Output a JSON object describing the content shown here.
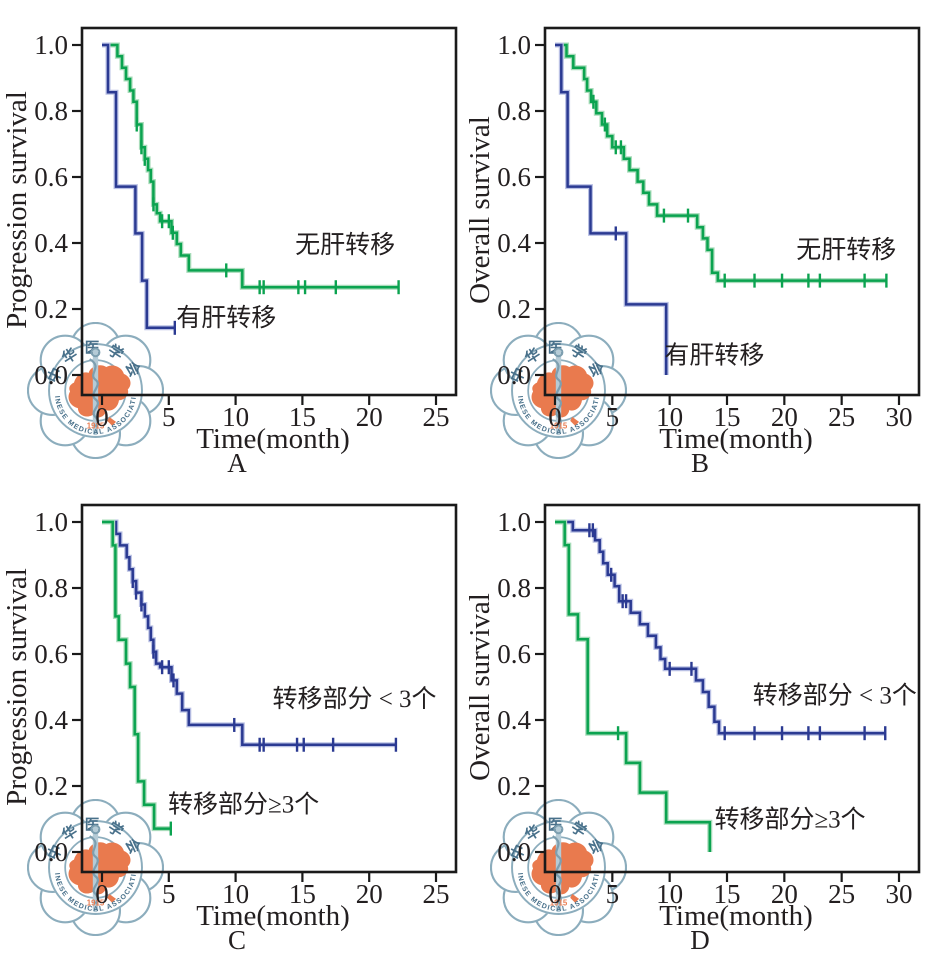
{
  "colors": {
    "green": "#0ba350",
    "green_halo": "#a8dcba",
    "navy": "#2b3a92",
    "navy_halo": "#b9c0e4",
    "axis": "#1a1a1a",
    "text": "#231f20",
    "watermark_blue": "#8cadbd",
    "watermark_text_blue": "#48708a",
    "watermark_orange": "#e97a4e"
  },
  "watermark": {
    "name": "chinese-medical-association-logo",
    "top_text": "中华医学会",
    "bottom_text": "CHINESE MEDICAL ASSOCIATION",
    "year": "1915"
  },
  "chart_data": [
    {
      "type": "line",
      "subtype": "kaplan-meier-step",
      "panel_label": "A",
      "xlabel": "Time(month)",
      "ylabel": "Progression survival",
      "xlim": [
        0,
        25
      ],
      "ylim": [
        0,
        1.0
      ],
      "xticks": [
        0,
        5,
        10,
        15,
        20,
        25
      ],
      "yticks": [
        "0.0",
        "0.2",
        "0.4",
        "0.6",
        "0.8",
        "1.0"
      ],
      "grid": false,
      "legend_position": "inline-labels",
      "series": [
        {
          "name": "无肝转移",
          "color_key": "green",
          "steps": [
            [
              0,
              1.0
            ],
            [
              1.15,
              0.966
            ],
            [
              1.5,
              0.931
            ],
            [
              1.8,
              0.897
            ],
            [
              2.1,
              0.862
            ],
            [
              2.35,
              0.828
            ],
            [
              2.6,
              0.759
            ],
            [
              2.95,
              0.69
            ],
            [
              3.2,
              0.655
            ],
            [
              3.45,
              0.621
            ],
            [
              3.65,
              0.586
            ],
            [
              3.85,
              0.517
            ],
            [
              4.1,
              0.49
            ],
            [
              4.35,
              0.466
            ],
            [
              5.2,
              0.431
            ],
            [
              5.6,
              0.397
            ],
            [
              5.9,
              0.362
            ],
            [
              6.5,
              0.317
            ],
            [
              10.5,
              0.266
            ],
            [
              22.2,
              0.266
            ]
          ],
          "censors": [
            [
              2.6,
              0.759
            ],
            [
              2.95,
              0.69
            ],
            [
              3.2,
              0.655
            ],
            [
              3.85,
              0.517
            ],
            [
              4.5,
              0.466
            ],
            [
              5.0,
              0.466
            ],
            [
              5.3,
              0.431
            ],
            [
              9.3,
              0.317
            ],
            [
              11.8,
              0.266
            ],
            [
              12.1,
              0.266
            ],
            [
              14.7,
              0.266
            ],
            [
              15.2,
              0.266
            ],
            [
              17.5,
              0.266
            ],
            [
              22.2,
              0.266
            ]
          ],
          "label_pos": [
            18.2,
            0.37
          ]
        },
        {
          "name": "有肝转移",
          "color_key": "navy",
          "steps": [
            [
              0,
              1.0
            ],
            [
              0.45,
              0.857
            ],
            [
              1.05,
              0.571
            ],
            [
              2.5,
              0.429
            ],
            [
              3.0,
              0.286
            ],
            [
              3.35,
              0.143
            ],
            [
              5.5,
              0.143
            ]
          ],
          "censors": [
            [
              5.45,
              0.143
            ]
          ],
          "label_pos": [
            9.3,
            0.148
          ]
        }
      ]
    },
    {
      "type": "line",
      "subtype": "kaplan-meier-step",
      "panel_label": "B",
      "xlabel": "Time(month)",
      "ylabel": "Overall survival",
      "xlim": [
        0,
        30
      ],
      "ylim": [
        0,
        1.0
      ],
      "xticks": [
        0,
        5,
        10,
        15,
        20,
        25,
        30
      ],
      "yticks": [
        "0.0",
        "0.2",
        "0.4",
        "0.6",
        "0.8",
        "1.0"
      ],
      "grid": false,
      "legend_position": "inline-labels",
      "series": [
        {
          "name": "无肝转移",
          "color_key": "green",
          "steps": [
            [
              0,
              1.0
            ],
            [
              1.0,
              0.966
            ],
            [
              1.6,
              0.931
            ],
            [
              2.55,
              0.897
            ],
            [
              2.8,
              0.862
            ],
            [
              3.15,
              0.828
            ],
            [
              3.6,
              0.793
            ],
            [
              4.1,
              0.759
            ],
            [
              4.55,
              0.724
            ],
            [
              5.0,
              0.69
            ],
            [
              6.0,
              0.655
            ],
            [
              6.5,
              0.621
            ],
            [
              7.2,
              0.586
            ],
            [
              7.7,
              0.552
            ],
            [
              8.2,
              0.517
            ],
            [
              8.9,
              0.483
            ],
            [
              12.4,
              0.448
            ],
            [
              12.9,
              0.414
            ],
            [
              13.3,
              0.379
            ],
            [
              13.7,
              0.31
            ],
            [
              14.2,
              0.286
            ],
            [
              28.9,
              0.286
            ]
          ],
          "censors": [
            [
              3.35,
              0.828
            ],
            [
              4.35,
              0.759
            ],
            [
              5.3,
              0.69
            ],
            [
              5.75,
              0.69
            ],
            [
              9.5,
              0.483
            ],
            [
              11.6,
              0.483
            ],
            [
              14.8,
              0.286
            ],
            [
              17.4,
              0.286
            ],
            [
              19.8,
              0.286
            ],
            [
              22.1,
              0.286
            ],
            [
              23.1,
              0.286
            ],
            [
              27.0,
              0.286
            ],
            [
              28.9,
              0.286
            ]
          ],
          "label_pos": [
            25.4,
            0.355
          ]
        },
        {
          "name": "有肝转移",
          "color_key": "navy",
          "steps": [
            [
              0,
              1.0
            ],
            [
              0.55,
              0.857
            ],
            [
              1.1,
              0.571
            ],
            [
              3.1,
              0.429
            ],
            [
              6.2,
              0.214
            ],
            [
              9.7,
              0.0
            ]
          ],
          "censors": [
            [
              5.3,
              0.429
            ]
          ],
          "label_pos": [
            13.9,
            0.035
          ]
        }
      ]
    },
    {
      "type": "line",
      "subtype": "kaplan-meier-step",
      "panel_label": "C",
      "xlabel": "Time(month)",
      "ylabel": "Progression survival",
      "xlim": [
        0,
        25
      ],
      "ylim": [
        0,
        1.0
      ],
      "xticks": [
        0,
        5,
        10,
        15,
        20,
        25
      ],
      "yticks": [
        "0.0",
        "0.2",
        "0.4",
        "0.6",
        "0.8",
        "1.0"
      ],
      "grid": false,
      "legend_position": "inline-labels",
      "series": [
        {
          "name": "转移部分 < 3个",
          "color_key": "navy",
          "steps": [
            [
              0,
              1.0
            ],
            [
              1.05,
              0.964
            ],
            [
              1.35,
              0.929
            ],
            [
              1.85,
              0.893
            ],
            [
              2.05,
              0.857
            ],
            [
              2.3,
              0.821
            ],
            [
              2.55,
              0.786
            ],
            [
              2.95,
              0.75
            ],
            [
              3.2,
              0.714
            ],
            [
              3.45,
              0.679
            ],
            [
              3.65,
              0.643
            ],
            [
              3.85,
              0.607
            ],
            [
              4.05,
              0.571
            ],
            [
              4.35,
              0.56
            ],
            [
              5.2,
              0.52
            ],
            [
              5.6,
              0.48
            ],
            [
              6.0,
              0.43
            ],
            [
              6.5,
              0.385
            ],
            [
              10.5,
              0.325
            ],
            [
              22.0,
              0.325
            ]
          ],
          "censors": [
            [
              2.3,
              0.821
            ],
            [
              2.55,
              0.786
            ],
            [
              2.95,
              0.75
            ],
            [
              3.85,
              0.607
            ],
            [
              4.5,
              0.56
            ],
            [
              5.0,
              0.56
            ],
            [
              5.35,
              0.52
            ],
            [
              9.9,
              0.385
            ],
            [
              11.8,
              0.325
            ],
            [
              12.1,
              0.325
            ],
            [
              14.6,
              0.325
            ],
            [
              15.1,
              0.325
            ],
            [
              17.3,
              0.325
            ],
            [
              22.0,
              0.325
            ]
          ],
          "label_pos": [
            18.9,
            0.44
          ]
        },
        {
          "name": "转移部分≥3个",
          "color_key": "green",
          "steps": [
            [
              0,
              1.0
            ],
            [
              0.8,
              0.929
            ],
            [
              1.0,
              0.714
            ],
            [
              1.25,
              0.643
            ],
            [
              1.8,
              0.571
            ],
            [
              2.1,
              0.5
            ],
            [
              2.45,
              0.357
            ],
            [
              2.7,
              0.214
            ],
            [
              3.15,
              0.143
            ],
            [
              3.9,
              0.071
            ],
            [
              5.2,
              0.071
            ]
          ],
          "censors": [
            [
              5.15,
              0.071
            ]
          ],
          "label_pos": [
            10.6,
            0.12
          ]
        }
      ]
    },
    {
      "type": "line",
      "subtype": "kaplan-meier-step",
      "panel_label": "D",
      "xlabel": "Time(month)",
      "ylabel": "Overall survival",
      "xlim": [
        0,
        30
      ],
      "ylim": [
        0,
        1.0
      ],
      "xticks": [
        0,
        5,
        10,
        15,
        20,
        25,
        30
      ],
      "yticks": [
        "0.0",
        "0.2",
        "0.4",
        "0.6",
        "0.8",
        "1.0"
      ],
      "grid": false,
      "legend_position": "inline-labels",
      "series": [
        {
          "name": "转移部分 < 3个",
          "color_key": "navy",
          "steps": [
            [
              0,
              1.0
            ],
            [
              1.55,
              0.975
            ],
            [
              3.5,
              0.945
            ],
            [
              3.9,
              0.91
            ],
            [
              4.2,
              0.875
            ],
            [
              4.6,
              0.84
            ],
            [
              5.2,
              0.805
            ],
            [
              5.6,
              0.76
            ],
            [
              6.6,
              0.725
            ],
            [
              7.4,
              0.69
            ],
            [
              8.1,
              0.655
            ],
            [
              8.8,
              0.62
            ],
            [
              9.2,
              0.585
            ],
            [
              9.6,
              0.555
            ],
            [
              12.3,
              0.52
            ],
            [
              12.9,
              0.485
            ],
            [
              13.4,
              0.44
            ],
            [
              13.9,
              0.395
            ],
            [
              14.3,
              0.36
            ],
            [
              28.8,
              0.36
            ]
          ],
          "censors": [
            [
              3.0,
              0.975
            ],
            [
              3.3,
              0.975
            ],
            [
              4.9,
              0.84
            ],
            [
              5.9,
              0.76
            ],
            [
              6.2,
              0.76
            ],
            [
              10.0,
              0.555
            ],
            [
              11.9,
              0.555
            ],
            [
              14.8,
              0.36
            ],
            [
              17.4,
              0.36
            ],
            [
              19.8,
              0.36
            ],
            [
              22.1,
              0.36
            ],
            [
              23.1,
              0.36
            ],
            [
              27.0,
              0.36
            ],
            [
              28.8,
              0.36
            ]
          ],
          "label_pos": [
            24.4,
            0.45
          ]
        },
        {
          "name": "转移部分≥3个",
          "color_key": "green",
          "steps": [
            [
              0,
              1.0
            ],
            [
              0.85,
              0.93
            ],
            [
              1.2,
              0.72
            ],
            [
              2.0,
              0.645
            ],
            [
              2.85,
              0.36
            ],
            [
              6.2,
              0.27
            ],
            [
              7.4,
              0.18
            ],
            [
              9.7,
              0.09
            ],
            [
              13.5,
              0.0
            ]
          ],
          "censors": [
            [
              5.5,
              0.36
            ]
          ],
          "label_pos": [
            20.5,
            0.075
          ]
        }
      ]
    }
  ]
}
